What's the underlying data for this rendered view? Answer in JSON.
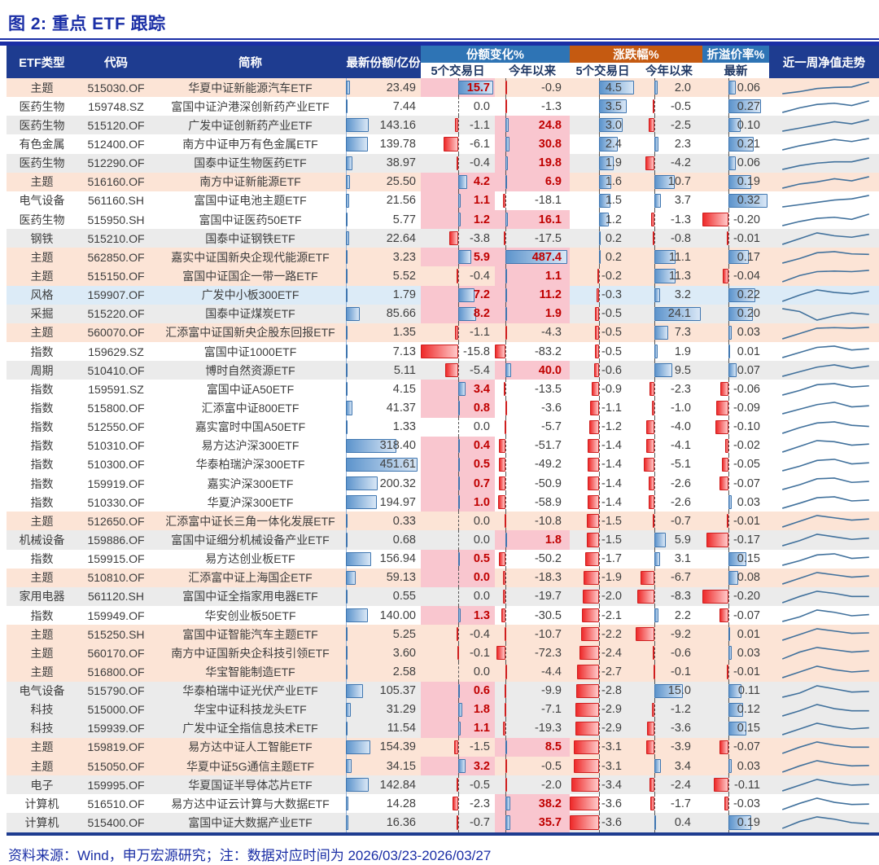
{
  "title": "图 2: 重点 ETF 跟踪",
  "footer": "资料来源：Wind，申万宏源研究；注：数据对应时间为 2026/03/23-2026/03/27",
  "colors": {
    "navy_header": "#1e3c90",
    "group_share_change": "#2e74b5",
    "group_price_change": "#c55a11",
    "group_premium": "#2e74b5",
    "row_peach": "#fce4d6",
    "row_gray": "#ebebeb",
    "row_blue": "#dcebf7",
    "highlight_pink": "#f9c6cf",
    "highlight_red_text": "#c00000",
    "bar_blue": "#5d94cc",
    "bar_red": "#ee2a2a",
    "sparkline": "#41719c",
    "title_blue": "#1b2fa6"
  },
  "table": {
    "headers": {
      "type": "ETF类型",
      "code": "代码",
      "name": "简称",
      "shares": "最新份额/亿份",
      "share_change_group": "份额变化%",
      "price_change_group": "涨跌幅%",
      "premium_group": "折溢价率%",
      "sub_5d_share": "5个交易日",
      "sub_ytd_share": "今年以来",
      "sub_5d_price": "5个交易日",
      "sub_ytd_price": "今年以来",
      "sub_latest": "最新",
      "sparkline": "近一周净值走势"
    },
    "rows": [
      {
        "type": "主题",
        "code": "515030.OF",
        "name": "华夏中证新能源汽车ETF",
        "shares": "23.49",
        "f5": "15.7",
        "fy": "-0.9",
        "z5": "4.5",
        "zy": "2.0",
        "prem": "0.06",
        "bg": "peach",
        "h5": true,
        "hy": false,
        "spark": [
          0,
          1,
          2.5,
          3,
          3.2,
          5.5
        ]
      },
      {
        "type": "医药生物",
        "code": "159748.SZ",
        "name": "富国中证沪港深创新药产业ETF",
        "shares": "7.44",
        "f5": "0.0",
        "fy": "-1.3",
        "z5": "3.5",
        "zy": "-0.5",
        "prem": "0.27",
        "bg": "white",
        "h5": false,
        "hy": false,
        "spark": [
          0,
          2,
          3.5,
          4,
          3,
          5
        ]
      },
      {
        "type": "医药生物",
        "code": "515120.OF",
        "name": "广发中证创新药产业ETF",
        "shares": "143.16",
        "f5": "-1.1",
        "fy": "24.8",
        "z5": "3.0",
        "zy": "-2.5",
        "prem": "0.10",
        "bg": "gray",
        "h5": false,
        "hy": true,
        "spark": [
          0,
          1.5,
          3,
          4.5,
          3.5,
          5.5
        ]
      },
      {
        "type": "有色金属",
        "code": "512400.OF",
        "name": "南方中证申万有色金属ETF",
        "shares": "139.78",
        "f5": "-6.1",
        "fy": "30.8",
        "z5": "2.4",
        "zy": "2.3",
        "prem": "0.21",
        "bg": "white",
        "h5": false,
        "hy": true,
        "spark": [
          0,
          2,
          3.5,
          5,
          4,
          5.5
        ]
      },
      {
        "type": "医药生物",
        "code": "512290.OF",
        "name": "国泰中证生物医药ETF",
        "shares": "38.97",
        "f5": "-0.4",
        "fy": "19.8",
        "z5": "1.9",
        "zy": "-4.2",
        "prem": "0.06",
        "bg": "gray",
        "h5": false,
        "hy": true,
        "spark": [
          0,
          1.5,
          2.5,
          3,
          3,
          4.5
        ]
      },
      {
        "type": "主题",
        "code": "516160.OF",
        "name": "南方中证新能源ETF",
        "shares": "25.50",
        "f5": "4.2",
        "fy": "6.9",
        "z5": "1.6",
        "zy": "10.7",
        "prem": "0.19",
        "bg": "peach",
        "h5": true,
        "hy": true,
        "spark": [
          0,
          2,
          3,
          4.5,
          3.5,
          5.5
        ]
      },
      {
        "type": "电气设备",
        "code": "561160.SH",
        "name": "富国中证电池主题ETF",
        "shares": "21.56",
        "f5": "1.1",
        "fy": "-18.1",
        "z5": "1.5",
        "zy": "3.7",
        "prem": "0.32",
        "bg": "white",
        "h5": true,
        "hy": false,
        "spark": [
          0,
          1,
          2,
          3,
          3.5,
          5
        ]
      },
      {
        "type": "医药生物",
        "code": "515950.SH",
        "name": "富国中证医药50ETF",
        "shares": "5.77",
        "f5": "1.2",
        "fy": "16.1",
        "z5": "1.2",
        "zy": "-1.3",
        "prem": "-0.20",
        "bg": "white",
        "h5": true,
        "hy": true,
        "spark": [
          0,
          2,
          3.5,
          4,
          3,
          5.5
        ]
      },
      {
        "type": "钢铁",
        "code": "515210.OF",
        "name": "国泰中证钢铁ETF",
        "shares": "22.64",
        "f5": "-3.8",
        "fy": "-17.5",
        "z5": "0.2",
        "zy": "-0.8",
        "prem": "-0.01",
        "bg": "gray",
        "h5": false,
        "hy": false,
        "spark": [
          0,
          2,
          4,
          3,
          2.5,
          3.5
        ]
      },
      {
        "type": "主题",
        "code": "562850.OF",
        "name": "嘉实中证国新央企现代能源ETF",
        "shares": "3.23",
        "f5": "5.9",
        "fy": "487.4",
        "z5": "0.2",
        "zy": "11.1",
        "prem": "0.17",
        "bg": "peach",
        "h5": true,
        "hy": true,
        "spark": [
          0,
          2,
          4.5,
          5,
          4,
          3.8
        ]
      },
      {
        "type": "主题",
        "code": "515150.OF",
        "name": "富国中证国企一带一路ETF",
        "shares": "5.52",
        "f5": "-0.4",
        "fy": "1.1",
        "z5": "-0.2",
        "zy": "11.3",
        "prem": "-0.04",
        "bg": "peach",
        "h5": false,
        "hy": true,
        "spark": [
          0,
          2.5,
          4,
          4.2,
          4,
          4.5
        ]
      },
      {
        "type": "风格",
        "code": "159907.OF",
        "name": "广发中小板300ETF",
        "shares": "1.79",
        "f5": "7.2",
        "fy": "11.2",
        "z5": "-0.3",
        "zy": "3.2",
        "prem": "0.22",
        "bg": "blue",
        "h5": true,
        "hy": true,
        "spark": [
          0,
          2.5,
          4.5,
          3.5,
          3,
          4
        ]
      },
      {
        "type": "采掘",
        "code": "515220.OF",
        "name": "国泰中证煤炭ETF",
        "shares": "85.66",
        "f5": "8.2",
        "fy": "1.9",
        "z5": "-0.5",
        "zy": "24.1",
        "prem": "0.20",
        "bg": "gray",
        "h5": true,
        "hy": true,
        "spark": [
          5,
          4,
          1,
          2.5,
          3.5,
          3
        ]
      },
      {
        "type": "主题",
        "code": "560070.OF",
        "name": "汇添富中证国新央企股东回报ETF",
        "shares": "1.35",
        "f5": "-1.1",
        "fy": "-4.3",
        "z5": "-0.5",
        "zy": "7.3",
        "prem": "0.03",
        "bg": "peach",
        "h5": false,
        "hy": false,
        "spark": [
          0,
          2,
          4,
          4.2,
          4,
          4.3
        ]
      },
      {
        "type": "指数",
        "code": "159629.SZ",
        "name": "富国中证1000ETF",
        "shares": "7.13",
        "f5": "-15.8",
        "fy": "-83.2",
        "z5": "-0.5",
        "zy": "1.9",
        "prem": "0.01",
        "bg": "white",
        "h5": false,
        "hy": false,
        "spark": [
          0,
          2,
          4,
          4.5,
          3,
          3.5
        ]
      },
      {
        "type": "周期",
        "code": "510410.OF",
        "name": "博时自然资源ETF",
        "shares": "5.11",
        "f5": "-5.4",
        "fy": "40.0",
        "z5": "-0.6",
        "zy": "9.5",
        "prem": "0.07",
        "bg": "gray",
        "h5": false,
        "hy": true,
        "spark": [
          0,
          2,
          4,
          5,
          3.5,
          4.5
        ]
      },
      {
        "type": "指数",
        "code": "159591.SZ",
        "name": "富国中证A50ETF",
        "shares": "4.15",
        "f5": "3.4",
        "fy": "-13.5",
        "z5": "-0.9",
        "zy": "-2.3",
        "prem": "-0.06",
        "bg": "white",
        "h5": true,
        "hy": false,
        "spark": [
          0,
          2,
          4.5,
          5,
          3.5,
          4
        ]
      },
      {
        "type": "指数",
        "code": "515800.OF",
        "name": "汇添富中证800ETF",
        "shares": "41.37",
        "f5": "0.8",
        "fy": "-3.6",
        "z5": "-1.1",
        "zy": "-1.0",
        "prem": "-0.09",
        "bg": "white",
        "h5": true,
        "hy": false,
        "spark": [
          0,
          2,
          4,
          5,
          3,
          3.5
        ]
      },
      {
        "type": "指数",
        "code": "512550.OF",
        "name": "嘉实富时中国A50ETF",
        "shares": "1.33",
        "f5": "0.0",
        "fy": "-5.7",
        "z5": "-1.2",
        "zy": "-4.0",
        "prem": "-0.10",
        "bg": "white",
        "h5": false,
        "hy": false,
        "spark": [
          0,
          2.5,
          4.5,
          5,
          3.5,
          3
        ]
      },
      {
        "type": "指数",
        "code": "510310.OF",
        "name": "易方达沪深300ETF",
        "shares": "318.40",
        "f5": "0.4",
        "fy": "-51.7",
        "z5": "-1.4",
        "zy": "-4.1",
        "prem": "-0.02",
        "bg": "white",
        "h5": true,
        "hy": false,
        "spark": [
          0,
          2.5,
          5,
          4.5,
          3,
          3.5
        ]
      },
      {
        "type": "指数",
        "code": "510300.OF",
        "name": "华泰柏瑞沪深300ETF",
        "shares": "451.61",
        "f5": "0.5",
        "fy": "-49.2",
        "z5": "-1.4",
        "zy": "-5.1",
        "prem": "-0.05",
        "bg": "white",
        "h5": true,
        "hy": false,
        "spark": [
          0,
          2,
          4.5,
          5,
          3,
          3.5
        ]
      },
      {
        "type": "指数",
        "code": "159919.OF",
        "name": "嘉实沪深300ETF",
        "shares": "200.32",
        "f5": "0.7",
        "fy": "-50.9",
        "z5": "-1.4",
        "zy": "-2.6",
        "prem": "-0.07",
        "bg": "white",
        "h5": true,
        "hy": false,
        "spark": [
          0,
          2,
          4.5,
          4.8,
          3,
          3.4
        ]
      },
      {
        "type": "指数",
        "code": "510330.OF",
        "name": "华夏沪深300ETF",
        "shares": "194.97",
        "f5": "1.0",
        "fy": "-58.9",
        "z5": "-1.4",
        "zy": "-2.6",
        "prem": "0.03",
        "bg": "white",
        "h5": true,
        "hy": false,
        "spark": [
          0,
          2.2,
          4.6,
          5,
          3.2,
          3.6
        ]
      },
      {
        "type": "主题",
        "code": "512650.OF",
        "name": "汇添富中证长三角一体化发展ETF",
        "shares": "0.33",
        "f5": "0.0",
        "fy": "-10.8",
        "z5": "-1.5",
        "zy": "-0.7",
        "prem": "-0.01",
        "bg": "peach",
        "h5": false,
        "hy": false,
        "spark": [
          0,
          2.5,
          5,
          4,
          3,
          3.5
        ]
      },
      {
        "type": "机械设备",
        "code": "159886.OF",
        "name": "富国中证细分机械设备产业ETF",
        "shares": "0.68",
        "f5": "0.0",
        "fy": "1.8",
        "z5": "-1.5",
        "zy": "5.9",
        "prem": "-0.17",
        "bg": "gray",
        "h5": false,
        "hy": true,
        "spark": [
          0,
          2,
          4.5,
          3.5,
          2.5,
          3
        ]
      },
      {
        "type": "指数",
        "code": "159915.OF",
        "name": "易方达创业板ETF",
        "shares": "156.94",
        "f5": "0.5",
        "fy": "-50.2",
        "z5": "-1.7",
        "zy": "3.1",
        "prem": "0.15",
        "bg": "white",
        "h5": true,
        "hy": false,
        "spark": [
          0,
          2,
          4.5,
          5,
          3,
          3.5
        ]
      },
      {
        "type": "主题",
        "code": "510810.OF",
        "name": "汇添富中证上海国企ETF",
        "shares": "59.13",
        "f5": "0.0",
        "fy": "-18.3",
        "z5": "-1.9",
        "zy": "-6.7",
        "prem": "0.08",
        "bg": "peach",
        "h5": true,
        "hy": false,
        "spark": [
          0,
          2.5,
          5,
          4,
          3,
          3.5
        ]
      },
      {
        "type": "家用电器",
        "code": "561120.SH",
        "name": "富国中证全指家用电器ETF",
        "shares": "0.55",
        "f5": "0.0",
        "fy": "-19.7",
        "z5": "-2.0",
        "zy": "-8.3",
        "prem": "-0.20",
        "bg": "gray",
        "h5": false,
        "hy": false,
        "spark": [
          0,
          3,
          5.5,
          4.5,
          3,
          3
        ]
      },
      {
        "type": "指数",
        "code": "159949.OF",
        "name": "华安创业板50ETF",
        "shares": "140.00",
        "f5": "1.3",
        "fy": "-30.5",
        "z5": "-2.1",
        "zy": "2.2",
        "prem": "-0.07",
        "bg": "white",
        "h5": true,
        "hy": false,
        "spark": [
          0,
          2,
          5,
          4,
          2.5,
          3
        ]
      },
      {
        "type": "主题",
        "code": "515250.SH",
        "name": "富国中证智能汽车主题ETF",
        "shares": "5.25",
        "f5": "-0.4",
        "fy": "-10.7",
        "z5": "-2.2",
        "zy": "-9.2",
        "prem": "0.01",
        "bg": "peach",
        "h5": false,
        "hy": false,
        "spark": [
          0,
          2.5,
          5,
          4,
          3,
          3.2
        ]
      },
      {
        "type": "主题",
        "code": "560170.OF",
        "name": "南方中证国新央企科技引领ETF",
        "shares": "3.60",
        "f5": "-0.1",
        "fy": "-72.3",
        "z5": "-2.4",
        "zy": "-0.6",
        "prem": "0.03",
        "bg": "peach",
        "h5": false,
        "hy": false,
        "spark": [
          0,
          3,
          5,
          4,
          3,
          3.5
        ]
      },
      {
        "type": "主题",
        "code": "516800.OF",
        "name": "华宝智能制造ETF",
        "shares": "2.58",
        "f5": "0.0",
        "fy": "-4.4",
        "z5": "-2.7",
        "zy": "-0.1",
        "prem": "-0.01",
        "bg": "peach",
        "h5": false,
        "hy": false,
        "spark": [
          0,
          2.5,
          5,
          3.5,
          2.5,
          3
        ]
      },
      {
        "type": "电气设备",
        "code": "515790.OF",
        "name": "华泰柏瑞中证光伏产业ETF",
        "shares": "105.37",
        "f5": "0.6",
        "fy": "-9.9",
        "z5": "-2.8",
        "zy": "15.0",
        "prem": "0.11",
        "bg": "gray",
        "h5": true,
        "hy": false,
        "spark": [
          0,
          2,
          5.5,
          4,
          2.5,
          2.8
        ]
      },
      {
        "type": "科技",
        "code": "515000.OF",
        "name": "华宝中证科技龙头ETF",
        "shares": "31.29",
        "f5": "1.8",
        "fy": "-7.1",
        "z5": "-2.9",
        "zy": "-1.2",
        "prem": "0.12",
        "bg": "gray",
        "h5": true,
        "hy": false,
        "spark": [
          0,
          2.5,
          5.5,
          3.5,
          2.5,
          2.5
        ]
      },
      {
        "type": "科技",
        "code": "159939.OF",
        "name": "广发中证全指信息技术ETF",
        "shares": "11.54",
        "f5": "1.1",
        "fy": "-19.3",
        "z5": "-2.9",
        "zy": "-3.6",
        "prem": "0.15",
        "bg": "gray",
        "h5": true,
        "hy": false,
        "spark": [
          0,
          2.5,
          5,
          3.5,
          2.5,
          3
        ]
      },
      {
        "type": "主题",
        "code": "159819.OF",
        "name": "易方达中证人工智能ETF",
        "shares": "154.39",
        "f5": "-1.5",
        "fy": "8.5",
        "z5": "-3.1",
        "zy": "-3.9",
        "prem": "-0.07",
        "bg": "peach",
        "h5": false,
        "hy": true,
        "spark": [
          0,
          3,
          5.5,
          4,
          3,
          3
        ]
      },
      {
        "type": "主题",
        "code": "515050.OF",
        "name": "华夏中证5G通信主题ETF",
        "shares": "34.15",
        "f5": "3.2",
        "fy": "-0.5",
        "z5": "-3.1",
        "zy": "3.4",
        "prem": "0.03",
        "bg": "peach",
        "h5": true,
        "hy": false,
        "spark": [
          0,
          3,
          5.5,
          4,
          3,
          3.2
        ]
      },
      {
        "type": "电子",
        "code": "159995.OF",
        "name": "华夏国证半导体芯片ETF",
        "shares": "142.84",
        "f5": "-0.5",
        "fy": "-2.0",
        "z5": "-3.4",
        "zy": "-2.4",
        "prem": "-0.11",
        "bg": "gray",
        "h5": false,
        "hy": false,
        "spark": [
          0,
          2.5,
          5,
          3.5,
          2.5,
          2.8
        ]
      },
      {
        "type": "计算机",
        "code": "516510.OF",
        "name": "易方达中证云计算与大数据ETF",
        "shares": "14.28",
        "f5": "-2.3",
        "fy": "38.2",
        "z5": "-3.6",
        "zy": "-1.7",
        "prem": "-0.03",
        "bg": "white",
        "h5": false,
        "hy": true,
        "spark": [
          0,
          3,
          5.5,
          3.5,
          2.5,
          2.7
        ]
      },
      {
        "type": "计算机",
        "code": "515400.OF",
        "name": "富国中证大数据产业ETF",
        "shares": "16.36",
        "f5": "-0.7",
        "fy": "35.7",
        "z5": "-3.6",
        "zy": "0.4",
        "prem": "0.19",
        "bg": "gray",
        "h5": false,
        "hy": true,
        "spark": [
          0,
          3,
          5,
          4,
          2.5,
          2
        ]
      }
    ]
  }
}
